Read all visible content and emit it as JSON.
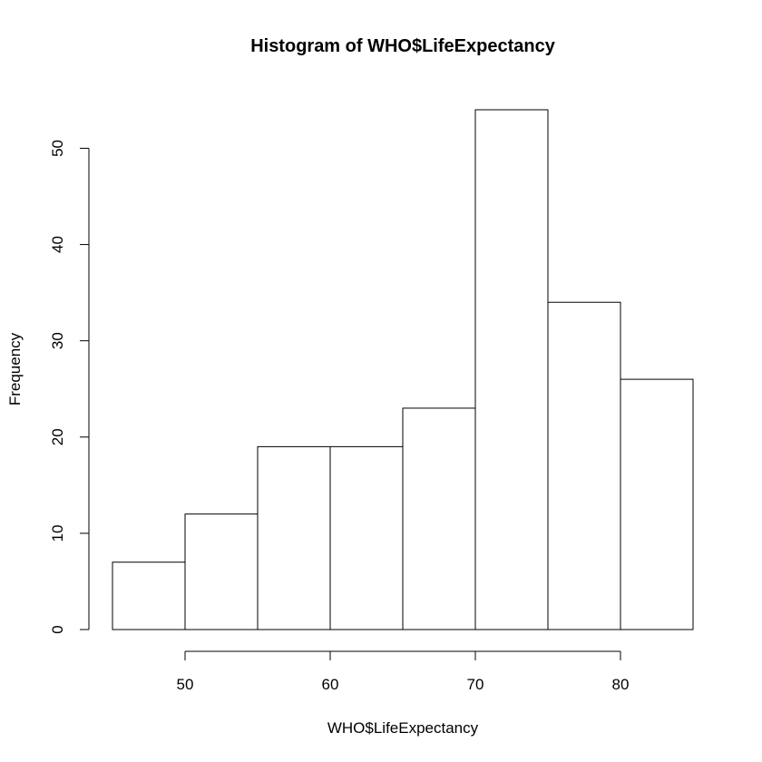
{
  "chart_data": {
    "type": "bar",
    "title": "Histogram of WHO$LifeExpectancy",
    "xlabel": "WHO$LifeExpectancy",
    "ylabel": "Frequency",
    "bins": [
      {
        "start": 45,
        "end": 50,
        "count": 7
      },
      {
        "start": 50,
        "end": 55,
        "count": 12
      },
      {
        "start": 55,
        "end": 60,
        "count": 19
      },
      {
        "start": 60,
        "end": 65,
        "count": 19
      },
      {
        "start": 65,
        "end": 70,
        "count": 23
      },
      {
        "start": 70,
        "end": 75,
        "count": 54
      },
      {
        "start": 75,
        "end": 80,
        "count": 34
      },
      {
        "start": 80,
        "end": 85,
        "count": 26
      }
    ],
    "xlim": [
      45,
      85
    ],
    "ylim": [
      0,
      54
    ],
    "xticks": [
      50,
      60,
      70,
      80
    ],
    "yticks": [
      0,
      10,
      20,
      30,
      40,
      50
    ],
    "grid": false,
    "legend": "none",
    "bar_fill": "#ffffff",
    "bar_stroke": "#000000"
  }
}
